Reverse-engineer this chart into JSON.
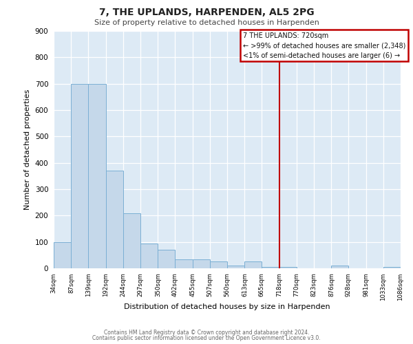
{
  "title": "7, THE UPLANDS, HARPENDEN, AL5 2PG",
  "subtitle": "Size of property relative to detached houses in Harpenden",
  "xlabel": "Distribution of detached houses by size in Harpenden",
  "ylabel": "Number of detached properties",
  "bar_color": "#c5d8ea",
  "bar_edge_color": "#7aafd4",
  "background_color": "#ddeaf5",
  "fig_background": "#ffffff",
  "bin_edges": [
    34,
    87,
    139,
    192,
    244,
    297,
    350,
    402,
    455,
    507,
    560,
    613,
    665,
    718,
    770,
    823,
    876,
    928,
    981,
    1033,
    1086
  ],
  "bin_labels": [
    "34sqm",
    "87sqm",
    "139sqm",
    "192sqm",
    "244sqm",
    "297sqm",
    "350sqm",
    "402sqm",
    "455sqm",
    "507sqm",
    "560sqm",
    "613sqm",
    "665sqm",
    "718sqm",
    "770sqm",
    "823sqm",
    "876sqm",
    "928sqm",
    "981sqm",
    "1033sqm",
    "1086sqm"
  ],
  "counts": [
    100,
    700,
    700,
    370,
    210,
    95,
    70,
    35,
    35,
    25,
    10,
    25,
    5,
    5,
    0,
    0,
    10,
    0,
    0,
    5
  ],
  "vline_x": 718,
  "vline_color": "#c00000",
  "ylim": [
    0,
    900
  ],
  "yticks": [
    0,
    100,
    200,
    300,
    400,
    500,
    600,
    700,
    800,
    900
  ],
  "legend_title": "7 THE UPLANDS: 720sqm",
  "legend_line1": "← >99% of detached houses are smaller (2,348)",
  "legend_line2": "<1% of semi-detached houses are larger (6) →",
  "footer_line1": "Contains HM Land Registry data © Crown copyright and database right 2024.",
  "footer_line2": "Contains public sector information licensed under the Open Government Licence v3.0."
}
